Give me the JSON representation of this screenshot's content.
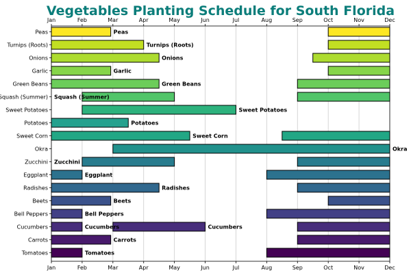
{
  "chart_data": {
    "type": "bar",
    "orientation": "horizontal-timeline",
    "title": "Vegetables Planting Schedule for South Florida",
    "title_color": "#0b7d7a",
    "x_ticks": [
      "Jan",
      "Feb",
      "Mar",
      "Apr",
      "May",
      "Jun",
      "Jul",
      "Aug",
      "Sep",
      "Oct",
      "Nov",
      "Dec"
    ],
    "x_range_months": [
      1,
      12
    ],
    "x_tick_position": "top-and-bottom",
    "grid": "vertical",
    "rows": [
      {
        "name": "Peas",
        "color": "#fde725",
        "periods": [
          {
            "start": 1,
            "end": 2.93,
            "label": "Peas"
          },
          {
            "start": 10,
            "end": 12,
            "label": ""
          }
        ]
      },
      {
        "name": "Turnips (Roots)",
        "color": "#c2df23",
        "periods": [
          {
            "start": 1,
            "end": 4,
            "label": "Turnips (Roots)"
          },
          {
            "start": 10,
            "end": 12,
            "label": ""
          }
        ]
      },
      {
        "name": "Onions",
        "color": "#addc30",
        "periods": [
          {
            "start": 1,
            "end": 4.5,
            "label": "Onions"
          },
          {
            "start": 9.5,
            "end": 12,
            "label": ""
          }
        ]
      },
      {
        "name": "Garlic",
        "color": "#86d549",
        "periods": [
          {
            "start": 1,
            "end": 2.93,
            "label": "Garlic"
          },
          {
            "start": 10,
            "end": 12,
            "label": ""
          }
        ]
      },
      {
        "name": "Green Beans",
        "color": "#6ccd5a",
        "periods": [
          {
            "start": 1,
            "end": 4.5,
            "label": "Green Beans"
          },
          {
            "start": 9,
            "end": 12,
            "label": ""
          }
        ]
      },
      {
        "name": "Squash (Summer)",
        "color": "#52c569",
        "periods": [
          {
            "start": 2,
            "end": 5,
            "label": "Squash (Summer)"
          },
          {
            "start": 9,
            "end": 12,
            "label": ""
          }
        ]
      },
      {
        "name": "Sweet Potatoes",
        "color": "#2db27d",
        "periods": [
          {
            "start": 2,
            "end": 7,
            "label": "Sweet Potatoes"
          }
        ]
      },
      {
        "name": "Potatoes",
        "color": "#25a18e",
        "periods": [
          {
            "start": 1,
            "end": 3.5,
            "label": "Potatoes"
          }
        ]
      },
      {
        "name": "Sweet Corn",
        "color": "#22a785",
        "periods": [
          {
            "start": 1,
            "end": 5.5,
            "label": "Sweet Corn"
          },
          {
            "start": 8.5,
            "end": 12,
            "label": ""
          }
        ]
      },
      {
        "name": "Okra",
        "color": "#21918c",
        "periods": [
          {
            "start": 3,
            "end": 12,
            "label": "Okra"
          }
        ]
      },
      {
        "name": "Zucchini",
        "color": "#287c8e",
        "periods": [
          {
            "start": 2,
            "end": 5,
            "label": "Zucchini"
          },
          {
            "start": 9,
            "end": 12,
            "label": ""
          }
        ]
      },
      {
        "name": "Eggplant",
        "color": "#2c728e",
        "periods": [
          {
            "start": 1,
            "end": 2,
            "label": "Eggplant"
          },
          {
            "start": 8,
            "end": 12,
            "label": ""
          }
        ]
      },
      {
        "name": "Radishes",
        "color": "#31688e",
        "periods": [
          {
            "start": 1,
            "end": 4.5,
            "label": "Radishes"
          },
          {
            "start": 9,
            "end": 12,
            "label": ""
          }
        ]
      },
      {
        "name": "Beets",
        "color": "#3b528b",
        "periods": [
          {
            "start": 1,
            "end": 2.93,
            "label": "Beets"
          },
          {
            "start": 10,
            "end": 12,
            "label": ""
          }
        ]
      },
      {
        "name": "Bell Peppers",
        "color": "#424086",
        "periods": [
          {
            "start": 1,
            "end": 2,
            "label": "Bell Peppers"
          },
          {
            "start": 8,
            "end": 12,
            "label": ""
          }
        ]
      },
      {
        "name": "Cucumbers",
        "color": "#472d7b",
        "periods": [
          {
            "start": 1,
            "end": 2,
            "label": "Cucumbers"
          },
          {
            "start": 3,
            "end": 6,
            "label": "Cucumbers"
          },
          {
            "start": 9,
            "end": 12,
            "label": ""
          }
        ]
      },
      {
        "name": "Carrots",
        "color": "#481a6c",
        "periods": [
          {
            "start": 1,
            "end": 2.93,
            "label": "Carrots"
          },
          {
            "start": 9,
            "end": 12,
            "label": ""
          }
        ]
      },
      {
        "name": "Tomatoes",
        "color": "#440154",
        "periods": [
          {
            "start": 1,
            "end": 2,
            "label": "Tomatoes"
          },
          {
            "start": 8,
            "end": 12,
            "label": ""
          }
        ]
      }
    ]
  },
  "inside_labels": [
    {
      "row": "Squash (Summer)",
      "label": "Squash (Summer)"
    },
    {
      "row": "Zucchini",
      "label": "Zucchini"
    }
  ]
}
